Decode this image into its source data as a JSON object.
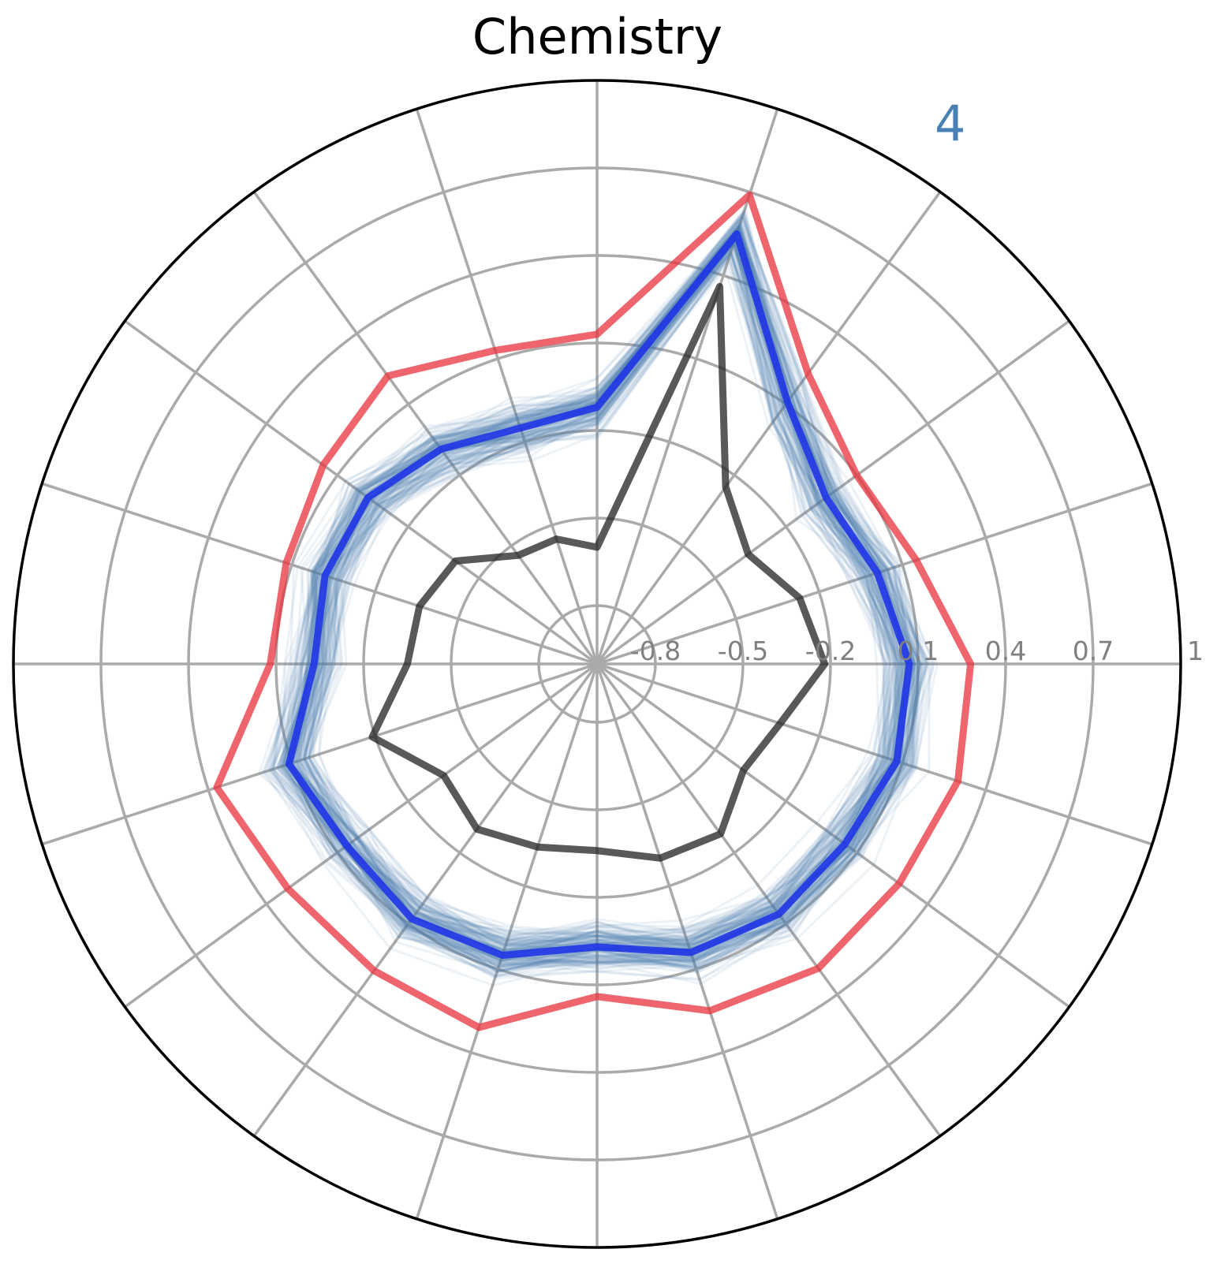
{
  "chart_data": {
    "type": "radar",
    "title": "Chemistry",
    "panel_label": "4",
    "colors": {
      "sample_lines": "#4a81b4",
      "upper": "#e8323c",
      "mean": "#1f35e6",
      "lower": "#222222",
      "grid": "#aaaaaa",
      "frame": "#000000",
      "tick_labels": "#808080",
      "panel_label": "#4a81b4"
    },
    "axes_count": 20,
    "rlim": [
      -1,
      1
    ],
    "radial_ticks": [
      -0.8,
      -0.5,
      -0.2,
      0.1,
      0.4,
      0.7,
      1
    ],
    "radial_tick_labels": [
      "-0.8",
      "-0.5",
      "-0.2",
      "0.1",
      "0.4",
      "0.7",
      "1"
    ],
    "grid": true,
    "series": [
      {
        "role": "upper",
        "values": [
          0.28,
          0.15,
          0.1,
          0.23,
          0.69,
          0.13,
          0.13,
          0.22,
          0.16,
          0.12,
          0.12,
          0.37,
          0.31,
          0.3,
          0.31,
          0.14,
          0.25,
          0.29,
          0.28,
          0.3
        ]
      },
      {
        "role": "mean",
        "values": [
          0.07,
          0.01,
          -0.03,
          0.11,
          0.55,
          -0.12,
          -0.15,
          -0.09,
          -0.03,
          -0.02,
          -0.03,
          0.11,
          0.06,
          0.08,
          0.05,
          -0.03,
          0.04,
          0.06,
          0.05,
          0.08
        ]
      },
      {
        "role": "lower",
        "values": [
          -0.22,
          -0.27,
          -0.36,
          -0.25,
          0.36,
          -0.6,
          -0.55,
          -0.54,
          -0.4,
          -0.36,
          -0.35,
          -0.19,
          -0.35,
          -0.3,
          -0.34,
          -0.36,
          -0.3,
          -0.28,
          -0.38,
          -0.34
        ]
      }
    ],
    "sample_cloud": {
      "count": 140,
      "spread": 0.12,
      "opacity": 0.1
    }
  }
}
